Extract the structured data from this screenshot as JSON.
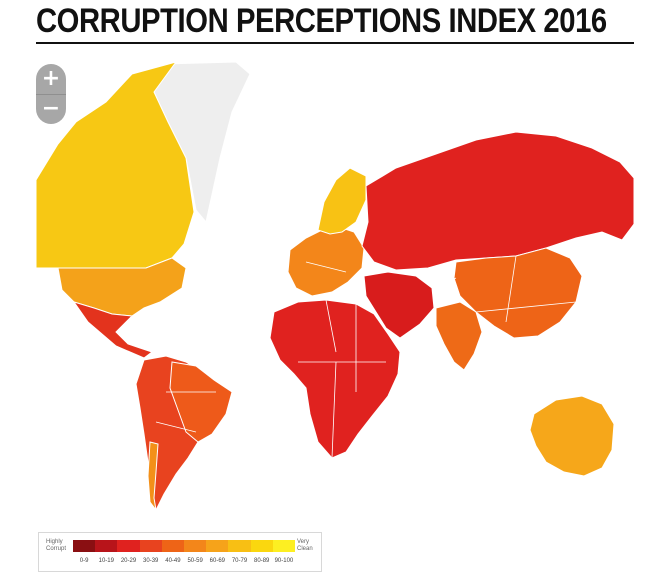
{
  "title": "CORRUPTION PERCEPTIONS INDEX 2016",
  "zoom": {
    "in_label": "+",
    "out_label": "−"
  },
  "legend": {
    "low_label": "Highly\nCorrupt",
    "high_label": "Very\nClean",
    "bins": [
      {
        "label": "0-9",
        "color": "#8a0f12"
      },
      {
        "label": "10-19",
        "color": "#b8141a"
      },
      {
        "label": "20-29",
        "color": "#e0221f"
      },
      {
        "label": "30-39",
        "color": "#e8431f"
      },
      {
        "label": "40-49",
        "color": "#ee6417"
      },
      {
        "label": "50-59",
        "color": "#f3861a"
      },
      {
        "label": "60-69",
        "color": "#f6a31a"
      },
      {
        "label": "70-79",
        "color": "#f8bf14"
      },
      {
        "label": "80-89",
        "color": "#fad70f"
      },
      {
        "label": "90-100",
        "color": "#fdef22"
      }
    ]
  },
  "map": {
    "ocean_color": "#ffffff",
    "no_data_color": "#eeeeee",
    "regions": [
      {
        "name": "greenland",
        "fill": "#eeeeee"
      },
      {
        "name": "canada",
        "fill": "#f7c814"
      },
      {
        "name": "usa",
        "fill": "#f4a21a"
      },
      {
        "name": "mexico-central-america",
        "fill": "#e3331d"
      },
      {
        "name": "south-america",
        "fill": "#e8431f"
      },
      {
        "name": "brazil",
        "fill": "#ee5a1a"
      },
      {
        "name": "chile-uruguay",
        "fill": "#f39019"
      },
      {
        "name": "europe-west",
        "fill": "#f3861a"
      },
      {
        "name": "scandinavia",
        "fill": "#f8c214"
      },
      {
        "name": "russia",
        "fill": "#e0221f"
      },
      {
        "name": "africa",
        "fill": "#e0221f"
      },
      {
        "name": "middle-east",
        "fill": "#d81c1c"
      },
      {
        "name": "china",
        "fill": "#ee6417"
      },
      {
        "name": "india",
        "fill": "#ee6a17"
      },
      {
        "name": "australia",
        "fill": "#f6a71a"
      }
    ]
  }
}
